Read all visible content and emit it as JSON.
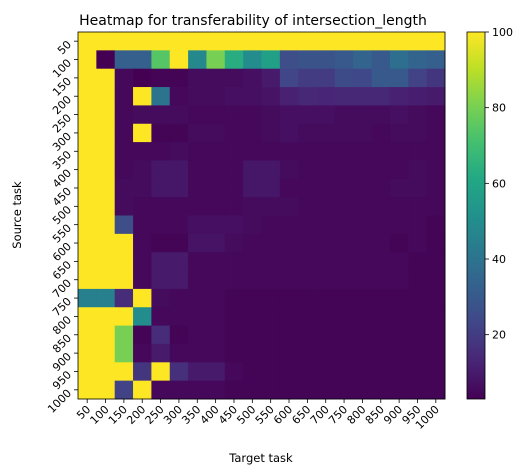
{
  "chart_data": {
    "type": "heatmap",
    "title": "Heatmap for transferability of intersection_length",
    "xlabel": "Target task",
    "ylabel": "Source task",
    "x_categories": [
      "50",
      "100",
      "150",
      "200",
      "250",
      "300",
      "350",
      "400",
      "450",
      "500",
      "550",
      "600",
      "650",
      "700",
      "750",
      "800",
      "850",
      "900",
      "950",
      "1000"
    ],
    "y_categories": [
      "50",
      "100",
      "150",
      "200",
      "250",
      "300",
      "350",
      "400",
      "450",
      "500",
      "550",
      "600",
      "650",
      "700",
      "750",
      "800",
      "850",
      "900",
      "950",
      "1000"
    ],
    "colorbar": {
      "colormap": "viridis",
      "vmin": 3,
      "vmax": 100,
      "ticks": [
        20,
        40,
        60,
        80,
        100
      ]
    },
    "values": [
      [
        100,
        100,
        100,
        100,
        100,
        100,
        100,
        100,
        100,
        100,
        100,
        100,
        100,
        100,
        100,
        100,
        100,
        100,
        100,
        100
      ],
      [
        100,
        3,
        32,
        32,
        74,
        100,
        48,
        80,
        63,
        50,
        58,
        26,
        28,
        28,
        30,
        34,
        30,
        38,
        34,
        32
      ],
      [
        100,
        100,
        5,
        3,
        4,
        4,
        6,
        6,
        6,
        7,
        10,
        23,
        20,
        20,
        25,
        24,
        30,
        30,
        22,
        18
      ],
      [
        100,
        100,
        5,
        100,
        40,
        5,
        6,
        6,
        7,
        7,
        8,
        12,
        14,
        13,
        14,
        14,
        14,
        12,
        11,
        10
      ],
      [
        100,
        100,
        5,
        6,
        6,
        6,
        5,
        5,
        5,
        5,
        6,
        7,
        7,
        7,
        6,
        6,
        6,
        7,
        6,
        5
      ],
      [
        100,
        100,
        5,
        100,
        4,
        4,
        6,
        6,
        5,
        5,
        6,
        7,
        6,
        6,
        6,
        6,
        5,
        6,
        6,
        5
      ],
      [
        100,
        100,
        5,
        5,
        5,
        6,
        5,
        5,
        5,
        5,
        5,
        5,
        5,
        5,
        5,
        5,
        5,
        5,
        5,
        5
      ],
      [
        100,
        100,
        5,
        6,
        9,
        9,
        5,
        5,
        5,
        9,
        9,
        6,
        5,
        5,
        5,
        5,
        5,
        5,
        6,
        5
      ],
      [
        100,
        100,
        6,
        6,
        9,
        9,
        5,
        5,
        5,
        9,
        9,
        5,
        5,
        5,
        5,
        5,
        5,
        6,
        6,
        5
      ],
      [
        100,
        100,
        6,
        5,
        5,
        5,
        5,
        5,
        5,
        6,
        6,
        6,
        5,
        5,
        5,
        5,
        5,
        5,
        5,
        5
      ],
      [
        100,
        100,
        26,
        5,
        5,
        5,
        7,
        7,
        7,
        6,
        5,
        5,
        5,
        5,
        5,
        5,
        5,
        5,
        5,
        4
      ],
      [
        100,
        100,
        100,
        5,
        4,
        4,
        8,
        8,
        6,
        5,
        5,
        5,
        5,
        5,
        5,
        5,
        5,
        4,
        5,
        4
      ],
      [
        100,
        100,
        100,
        5,
        10,
        10,
        5,
        5,
        5,
        5,
        5,
        5,
        5,
        5,
        5,
        5,
        5,
        5,
        4,
        4
      ],
      [
        100,
        100,
        100,
        5,
        10,
        10,
        5,
        5,
        5,
        5,
        5,
        5,
        5,
        5,
        5,
        5,
        5,
        5,
        4,
        4
      ],
      [
        45,
        45,
        15,
        100,
        6,
        5,
        5,
        5,
        4,
        4,
        4,
        4,
        4,
        4,
        4,
        4,
        4,
        4,
        4,
        4
      ],
      [
        100,
        100,
        100,
        50,
        5,
        5,
        5,
        5,
        4,
        4,
        4,
        4,
        4,
        4,
        4,
        4,
        4,
        4,
        4,
        4
      ],
      [
        100,
        100,
        80,
        4,
        15,
        4,
        5,
        5,
        4,
        4,
        4,
        4,
        4,
        4,
        4,
        4,
        4,
        4,
        4,
        4
      ],
      [
        100,
        100,
        80,
        5,
        10,
        5,
        5,
        5,
        4,
        4,
        4,
        4,
        4,
        4,
        4,
        4,
        4,
        4,
        4,
        4
      ],
      [
        100,
        100,
        100,
        18,
        100,
        16,
        10,
        10,
        5,
        4,
        4,
        4,
        4,
        4,
        4,
        4,
        4,
        4,
        4,
        4
      ],
      [
        100,
        100,
        22,
        100,
        5,
        5,
        5,
        5,
        4,
        4,
        4,
        4,
        4,
        4,
        4,
        4,
        4,
        4,
        4,
        4
      ]
    ]
  }
}
